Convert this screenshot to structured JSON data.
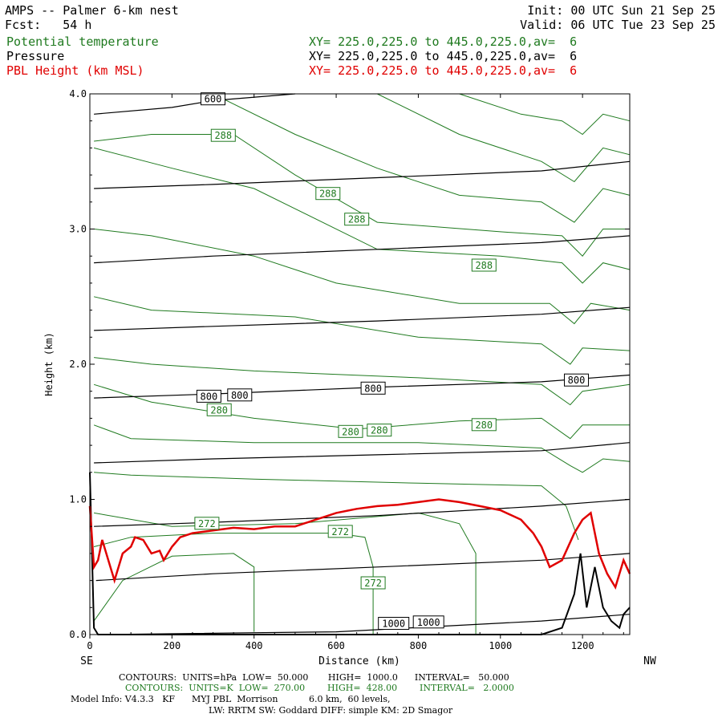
{
  "header": {
    "title": "AMPS -- Palmer 6-km nest",
    "fcst": "Fcst:   54 h",
    "init": "Init: 00 UTC Sun 21 Sep 25",
    "valid": "Valid: 06 UTC Tue 23 Sep 25",
    "fields": [
      {
        "name": "Potential temperature",
        "xy": "XY= 225.0,225.0 to 445.0,225.0,av=  6",
        "color": "#1f7a1f"
      },
      {
        "name": "Pressure",
        "xy": "XY= 225.0,225.0 to 445.0,225.0,av=  6",
        "color": "#000000"
      },
      {
        "name": "PBL Height (km MSL)",
        "xy": "XY= 225.0,225.0 to 445.0,225.0,av=  6",
        "color": "#e00000"
      }
    ]
  },
  "footer": {
    "line1": "CONTOURS:  UNITS=hPa  LOW=  50.000       HIGH=  1000.0      INTERVAL=   50.000",
    "line2": "CONTOURS:  UNITS=K  LOW=  270.00        HIGH=  428.00        INTERVAL=   2.0000",
    "line3": "Model Info: V4.3.3   KF      MYJ PBL  Morrison           6.0 km,  60 levels,",
    "line4": "LW: RRTM SW: Goddard DIFF: simple KM: 2D Smagor"
  },
  "chart_data": {
    "type": "line",
    "xlabel": "Distance (km)",
    "ylabel": "Height (km)",
    "xlim": [
      0,
      1315
    ],
    "ylim": [
      0,
      4
    ],
    "x_ticks": [
      0,
      200,
      400,
      600,
      800,
      1000,
      1200
    ],
    "y_ticks": [
      "0.0",
      "1.0",
      "2.0",
      "3.0",
      "4.0"
    ],
    "left_end_label": "SE",
    "right_end_label": "NW",
    "pressure_contours": [
      {
        "level": 1000,
        "points": [
          [
            20,
            0.0
          ],
          [
            600,
            0.02
          ],
          [
            1100,
            0.1
          ],
          [
            1315,
            0.15
          ]
        ]
      },
      {
        "level": 950,
        "points": [
          [
            15,
            0.4
          ],
          [
            300,
            0.45
          ],
          [
            700,
            0.5
          ],
          [
            1100,
            0.55
          ],
          [
            1315,
            0.6
          ]
        ]
      },
      {
        "level": 900,
        "points": [
          [
            10,
            0.8
          ],
          [
            300,
            0.83
          ],
          [
            700,
            0.88
          ],
          [
            1100,
            0.95
          ],
          [
            1315,
            1.0
          ]
        ]
      },
      {
        "level": 850,
        "points": [
          [
            10,
            1.27
          ],
          [
            300,
            1.3
          ],
          [
            700,
            1.33
          ],
          [
            1100,
            1.36
          ],
          [
            1315,
            1.42
          ]
        ]
      },
      {
        "level": 800,
        "points": [
          [
            10,
            1.75
          ],
          [
            300,
            1.78
          ],
          [
            700,
            1.83
          ],
          [
            1100,
            1.87
          ],
          [
            1315,
            1.92
          ]
        ]
      },
      {
        "level": 750,
        "points": [
          [
            10,
            2.25
          ],
          [
            300,
            2.28
          ],
          [
            700,
            2.32
          ],
          [
            1100,
            2.37
          ],
          [
            1315,
            2.42
          ]
        ]
      },
      {
        "level": 700,
        "points": [
          [
            10,
            2.75
          ],
          [
            300,
            2.8
          ],
          [
            700,
            2.85
          ],
          [
            1100,
            2.9
          ],
          [
            1315,
            2.95
          ]
        ]
      },
      {
        "level": 650,
        "points": [
          [
            10,
            3.3
          ],
          [
            300,
            3.33
          ],
          [
            700,
            3.38
          ],
          [
            1100,
            3.43
          ],
          [
            1315,
            3.5
          ]
        ]
      },
      {
        "level": 600,
        "points": [
          [
            10,
            3.85
          ],
          [
            200,
            3.9
          ],
          [
            300,
            3.95
          ],
          [
            500,
            4.0
          ]
        ]
      }
    ],
    "pressure_labels": [
      {
        "text": "600",
        "x": 300,
        "y": 3.96
      },
      {
        "text": "800",
        "x": 290,
        "y": 1.76
      },
      {
        "text": "800",
        "x": 365,
        "y": 1.77
      },
      {
        "text": "800",
        "x": 690,
        "y": 1.82
      },
      {
        "text": "800",
        "x": 1185,
        "y": 1.88
      },
      {
        "text": "1000",
        "x": 740,
        "y": 0.08
      },
      {
        "text": "1000",
        "x": 825,
        "y": 0.09
      }
    ],
    "theta_contours": [
      {
        "points": [
          [
            10,
            0.1
          ],
          [
            80,
            0.4
          ],
          [
            200,
            0.58
          ],
          [
            350,
            0.6
          ],
          [
            400,
            0.5
          ],
          [
            400,
            0.02
          ]
        ]
      },
      {
        "points": [
          [
            10,
            0.65
          ],
          [
            100,
            0.72
          ],
          [
            300,
            0.75
          ],
          [
            600,
            0.75
          ],
          [
            670,
            0.72
          ],
          [
            690,
            0.5
          ],
          [
            690,
            0.0
          ]
        ]
      },
      {
        "points": [
          [
            10,
            0.9
          ],
          [
            200,
            0.8
          ],
          [
            500,
            0.82
          ],
          [
            800,
            0.9
          ],
          [
            900,
            0.82
          ],
          [
            940,
            0.6
          ],
          [
            940,
            0.0
          ]
        ]
      },
      {
        "points": [
          [
            10,
            1.2
          ],
          [
            100,
            1.18
          ],
          [
            400,
            1.15
          ],
          [
            800,
            1.12
          ],
          [
            1100,
            1.1
          ],
          [
            1160,
            0.95
          ],
          [
            1190,
            0.7
          ]
        ]
      },
      {
        "points": [
          [
            10,
            1.55
          ],
          [
            100,
            1.45
          ],
          [
            400,
            1.42
          ],
          [
            800,
            1.42
          ],
          [
            1100,
            1.38
          ],
          [
            1170,
            1.25
          ],
          [
            1200,
            1.2
          ],
          [
            1250,
            1.3
          ],
          [
            1315,
            1.28
          ]
        ]
      },
      {
        "points": [
          [
            10,
            1.85
          ],
          [
            150,
            1.72
          ],
          [
            400,
            1.6
          ],
          [
            650,
            1.52
          ],
          [
            900,
            1.58
          ],
          [
            1100,
            1.6
          ],
          [
            1170,
            1.45
          ],
          [
            1200,
            1.55
          ],
          [
            1315,
            1.55
          ]
        ]
      },
      {
        "points": [
          [
            10,
            2.05
          ],
          [
            150,
            2.0
          ],
          [
            400,
            1.95
          ],
          [
            800,
            1.9
          ],
          [
            1100,
            1.85
          ],
          [
            1170,
            1.7
          ],
          [
            1200,
            1.8
          ],
          [
            1315,
            1.85
          ]
        ]
      },
      {
        "points": [
          [
            10,
            2.5
          ],
          [
            150,
            2.4
          ],
          [
            500,
            2.35
          ],
          [
            800,
            2.2
          ],
          [
            1100,
            2.15
          ],
          [
            1170,
            2.0
          ],
          [
            1200,
            2.12
          ],
          [
            1315,
            2.1
          ]
        ]
      },
      {
        "points": [
          [
            10,
            3.0
          ],
          [
            150,
            2.95
          ],
          [
            400,
            2.8
          ],
          [
            600,
            2.6
          ],
          [
            900,
            2.45
          ],
          [
            1120,
            2.45
          ],
          [
            1180,
            2.3
          ],
          [
            1220,
            2.45
          ],
          [
            1315,
            2.4
          ]
        ]
      },
      {
        "points": [
          [
            10,
            3.6
          ],
          [
            200,
            3.45
          ],
          [
            400,
            3.3
          ],
          [
            700,
            2.85
          ],
          [
            1000,
            2.8
          ],
          [
            1150,
            2.75
          ],
          [
            1200,
            2.6
          ],
          [
            1250,
            2.75
          ],
          [
            1315,
            2.7
          ]
        ]
      },
      {
        "points": [
          [
            10,
            3.65
          ],
          [
            150,
            3.7
          ],
          [
            350,
            3.7
          ],
          [
            500,
            3.4
          ],
          [
            700,
            3.05
          ],
          [
            1000,
            2.98
          ],
          [
            1150,
            2.95
          ],
          [
            1200,
            2.8
          ],
          [
            1250,
            3.0
          ],
          [
            1315,
            3.0
          ]
        ]
      },
      {
        "points": [
          [
            300,
            4.0
          ],
          [
            500,
            3.7
          ],
          [
            700,
            3.45
          ],
          [
            900,
            3.25
          ],
          [
            1100,
            3.2
          ],
          [
            1180,
            3.05
          ],
          [
            1250,
            3.3
          ],
          [
            1315,
            3.25
          ]
        ]
      },
      {
        "points": [
          [
            700,
            4.0
          ],
          [
            900,
            3.7
          ],
          [
            1100,
            3.5
          ],
          [
            1180,
            3.35
          ],
          [
            1250,
            3.6
          ],
          [
            1315,
            3.55
          ]
        ]
      },
      {
        "points": [
          [
            900,
            4.0
          ],
          [
            1050,
            3.85
          ],
          [
            1150,
            3.8
          ],
          [
            1200,
            3.7
          ],
          [
            1250,
            3.85
          ],
          [
            1315,
            3.8
          ]
        ]
      }
    ],
    "theta_labels": [
      {
        "text": "288",
        "x": 325,
        "y": 3.69
      },
      {
        "text": "288",
        "x": 580,
        "y": 3.26
      },
      {
        "text": "288",
        "x": 650,
        "y": 3.07
      },
      {
        "text": "288",
        "x": 960,
        "y": 2.73
      },
      {
        "text": "280",
        "x": 315,
        "y": 1.66
      },
      {
        "text": "280",
        "x": 635,
        "y": 1.5
      },
      {
        "text": "280",
        "x": 705,
        "y": 1.51
      },
      {
        "text": "280",
        "x": 960,
        "y": 1.55
      },
      {
        "text": "272",
        "x": 285,
        "y": 0.82
      },
      {
        "text": "272",
        "x": 610,
        "y": 0.76
      },
      {
        "text": "272",
        "x": 690,
        "y": 0.38
      }
    ],
    "pbl_height": {
      "color": "#e00000",
      "points": [
        [
          0,
          0.95
        ],
        [
          10,
          0.5
        ],
        [
          20,
          0.55
        ],
        [
          30,
          0.7
        ],
        [
          50,
          0.5
        ],
        [
          60,
          0.4
        ],
        [
          80,
          0.6
        ],
        [
          100,
          0.65
        ],
        [
          110,
          0.72
        ],
        [
          130,
          0.7
        ],
        [
          150,
          0.6
        ],
        [
          170,
          0.62
        ],
        [
          180,
          0.55
        ],
        [
          200,
          0.65
        ],
        [
          220,
          0.72
        ],
        [
          250,
          0.75
        ],
        [
          300,
          0.77
        ],
        [
          350,
          0.79
        ],
        [
          400,
          0.78
        ],
        [
          450,
          0.8
        ],
        [
          500,
          0.8
        ],
        [
          550,
          0.85
        ],
        [
          600,
          0.9
        ],
        [
          650,
          0.93
        ],
        [
          700,
          0.95
        ],
        [
          750,
          0.96
        ],
        [
          800,
          0.98
        ],
        [
          850,
          1.0
        ],
        [
          900,
          0.98
        ],
        [
          950,
          0.95
        ],
        [
          1000,
          0.92
        ],
        [
          1050,
          0.85
        ],
        [
          1080,
          0.75
        ],
        [
          1100,
          0.65
        ],
        [
          1120,
          0.5
        ],
        [
          1150,
          0.55
        ],
        [
          1180,
          0.75
        ],
        [
          1200,
          0.85
        ],
        [
          1220,
          0.9
        ],
        [
          1240,
          0.6
        ],
        [
          1260,
          0.45
        ],
        [
          1280,
          0.35
        ],
        [
          1300,
          0.55
        ],
        [
          1315,
          0.45
        ]
      ]
    },
    "terrain": {
      "color": "#000000",
      "points": [
        [
          0,
          1.2
        ],
        [
          10,
          0.05
        ],
        [
          20,
          0.0
        ],
        [
          1100,
          0.0
        ],
        [
          1150,
          0.05
        ],
        [
          1180,
          0.3
        ],
        [
          1195,
          0.6
        ],
        [
          1210,
          0.2
        ],
        [
          1230,
          0.5
        ],
        [
          1250,
          0.2
        ],
        [
          1270,
          0.1
        ],
        [
          1290,
          0.05
        ],
        [
          1300,
          0.15
        ],
        [
          1315,
          0.2
        ]
      ]
    }
  }
}
